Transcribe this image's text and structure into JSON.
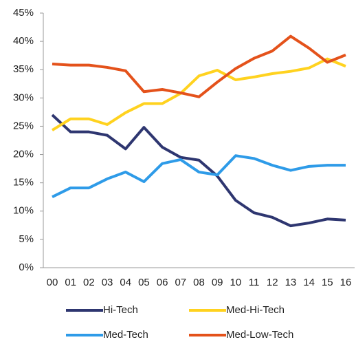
{
  "chart_data": {
    "type": "line",
    "categories": [
      "00",
      "01",
      "02",
      "03",
      "04",
      "05",
      "06",
      "07",
      "08",
      "09",
      "10",
      "11",
      "12",
      "13",
      "14",
      "15",
      "16"
    ],
    "series": [
      {
        "name": "Hi-Tech",
        "color": "#2e3670",
        "values": [
          27.0,
          24.0,
          24.0,
          23.4,
          21.0,
          24.8,
          21.3,
          19.5,
          19.0,
          16.2,
          11.9,
          9.7,
          8.9,
          7.4,
          7.9,
          8.6,
          8.4
        ]
      },
      {
        "name": "Med-Hi-Tech",
        "color": "#ffd21f",
        "values": [
          24.3,
          26.3,
          26.3,
          25.3,
          27.4,
          29.0,
          29.0,
          30.8,
          33.9,
          34.9,
          33.2,
          33.7,
          34.3,
          34.7,
          35.3,
          36.9,
          35.6
        ]
      },
      {
        "name": "Med-Tech",
        "color": "#2e9be8",
        "values": [
          12.5,
          14.1,
          14.1,
          15.7,
          16.9,
          15.2,
          18.4,
          19.1,
          16.9,
          16.4,
          19.8,
          19.3,
          18.1,
          17.2,
          17.9,
          18.1,
          18.1
        ]
      },
      {
        "name": "Med-Low-Tech",
        "color": "#e4521b",
        "values": [
          36.0,
          35.8,
          35.8,
          35.4,
          34.8,
          31.1,
          31.5,
          30.9,
          30.2,
          32.8,
          35.2,
          37.0,
          38.3,
          40.9,
          38.8,
          36.3,
          37.6
        ]
      }
    ],
    "ylim": [
      0,
      45
    ],
    "yticks": [
      {
        "value": 0,
        "label": "0%"
      },
      {
        "value": 5,
        "label": "5%"
      },
      {
        "value": 10,
        "label": "10%"
      },
      {
        "value": 15,
        "label": "15%"
      },
      {
        "value": 20,
        "label": "20%"
      },
      {
        "value": 25,
        "label": "25%"
      },
      {
        "value": 30,
        "label": "30%"
      },
      {
        "value": 35,
        "label": "35%"
      },
      {
        "value": 40,
        "label": "40%"
      },
      {
        "value": 45,
        "label": "45%"
      }
    ],
    "grid": false
  }
}
